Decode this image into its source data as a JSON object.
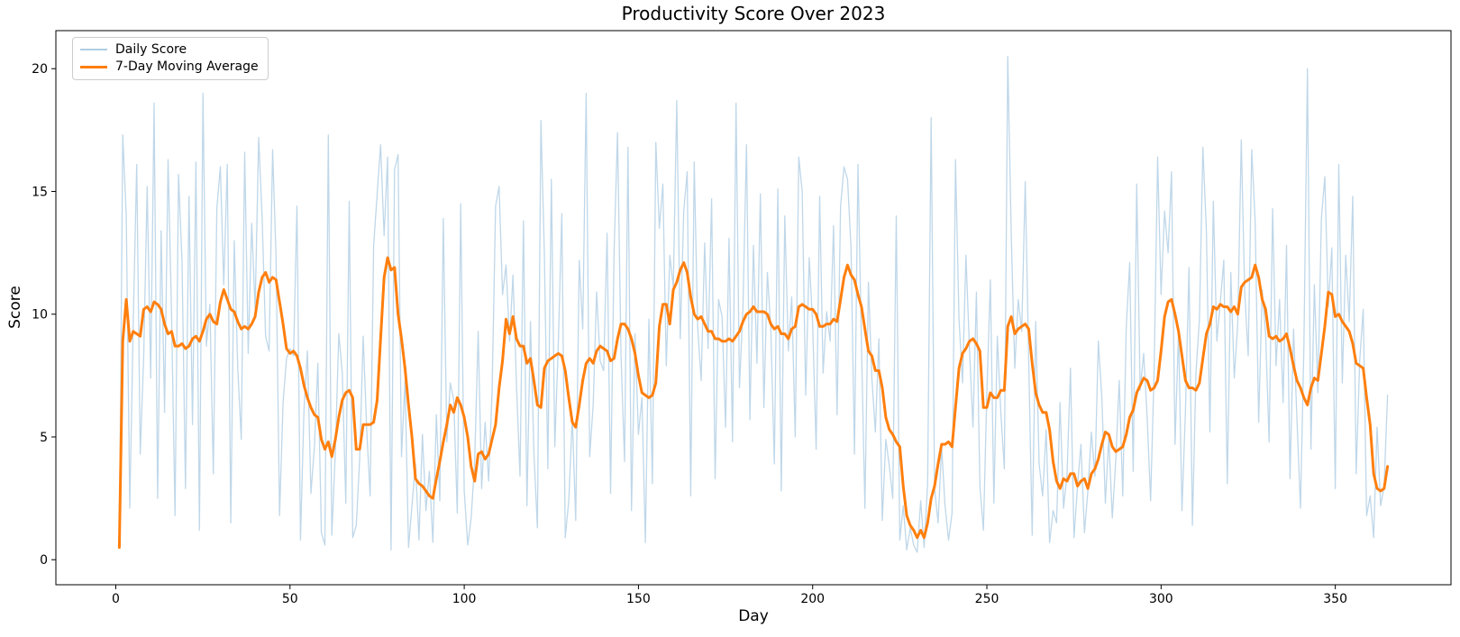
{
  "chart_data": {
    "type": "line",
    "title": "Productivity Score Over 2023",
    "xlabel": "Day",
    "ylabel": "Score",
    "xlim": [
      -17.2,
      383.2
    ],
    "ylim": [
      -1.02,
      21.55
    ],
    "xticks": [
      0,
      50,
      100,
      150,
      200,
      250,
      300,
      350
    ],
    "yticks": [
      0,
      5,
      10,
      15,
      20
    ],
    "grid": false,
    "x_start_day": 1,
    "legend": {
      "position": "upper left",
      "entries": [
        "Daily Score",
        "7-Day Moving Average"
      ]
    },
    "series": [
      {
        "name": "Daily Score",
        "color": "#afcde4",
        "opacity": 0.8,
        "width": 1.3,
        "values": [
          0.5,
          17.3,
          14.0,
          2.1,
          9.6,
          16.1,
          4.3,
          8.2,
          15.2,
          7.4,
          18.6,
          2.5,
          13.4,
          6.0,
          16.3,
          9.9,
          1.8,
          15.7,
          12.1,
          2.9,
          14.8,
          5.5,
          16.2,
          1.2,
          19.0,
          8.7,
          10.4,
          3.5,
          14.3,
          16.0,
          11.2,
          16.1,
          1.5,
          13.0,
          7.8,
          4.9,
          16.6,
          8.4,
          13.7,
          10.2,
          17.2,
          13.9,
          9.1,
          8.5,
          16.7,
          12.3,
          1.8,
          6.4,
          8.2,
          8.6,
          8.3,
          14.4,
          0.8,
          6.1,
          8.5,
          2.7,
          4.6,
          8.0,
          1.1,
          0.6,
          17.3,
          1.0,
          4.4,
          9.2,
          7.6,
          2.3,
          14.6,
          0.9,
          1.4,
          4.1,
          9.1,
          5.3,
          2.6,
          12.8,
          14.9,
          16.9,
          13.2,
          16.4,
          0.4,
          15.9,
          16.5,
          4.2,
          7.3,
          0.5,
          2.2,
          3.9,
          0.8,
          5.1,
          2.0,
          3.6,
          0.7,
          5.9,
          2.4,
          13.9,
          4.8,
          7.2,
          6.5,
          1.9,
          14.5,
          2.8,
          0.6,
          1.7,
          4.0,
          9.3,
          2.9,
          5.6,
          3.2,
          6.8,
          14.4,
          15.2,
          10.8,
          12.0,
          8.9,
          11.6,
          7.1,
          3.4,
          13.8,
          2.2,
          9.7,
          4.4,
          1.3,
          17.9,
          12.5,
          3.7,
          15.5,
          4.6,
          8.8,
          14.1,
          0.9,
          2.4,
          5.8,
          1.6,
          12.2,
          9.4,
          19.0,
          4.2,
          6.3,
          10.9,
          8.1,
          7.7,
          13.3,
          2.7,
          12.6,
          17.4,
          8.3,
          4.0,
          16.8,
          2.0,
          9.2,
          5.1,
          6.6,
          0.7,
          9.8,
          3.1,
          17.0,
          13.5,
          15.3,
          7.9,
          12.4,
          11.1,
          18.7,
          9.0,
          14.2,
          15.8,
          2.6,
          16.2,
          9.5,
          7.3,
          12.9,
          8.6,
          14.7,
          3.3,
          10.6,
          9.9,
          5.4,
          13.1,
          4.8,
          18.6,
          7.0,
          10.3,
          16.9,
          5.7,
          12.8,
          8.0,
          14.9,
          6.2,
          11.7,
          9.4,
          3.9,
          15.1,
          2.8,
          14.0,
          8.5,
          10.7,
          5.0,
          16.4,
          15.0,
          6.7,
          12.3,
          9.6,
          4.5,
          14.8,
          7.6,
          10.1,
          8.9,
          13.6,
          5.9,
          14.4,
          16.0,
          15.5,
          12.7,
          4.3,
          16.1,
          8.7,
          2.1,
          11.3,
          7.4,
          5.2,
          9.0,
          1.6,
          4.9,
          3.8,
          2.5,
          14.0,
          0.8,
          2.2,
          0.4,
          1.3,
          0.6,
          0.3,
          2.4,
          0.5,
          3.1,
          18.0,
          2.9,
          1.5,
          4.6,
          2.2,
          0.8,
          1.9,
          16.3,
          9.8,
          7.2,
          12.4,
          8.6,
          5.4,
          10.9,
          3.0,
          1.2,
          6.8,
          11.4,
          2.3,
          9.1,
          6.0,
          3.7,
          20.5,
          13.2,
          7.8,
          10.6,
          9.3,
          15.4,
          8.2,
          1.0,
          9.7,
          3.9,
          2.6,
          5.3,
          0.7,
          2.0,
          1.5,
          6.4,
          2.1,
          3.5,
          7.8,
          0.9,
          3.0,
          4.7,
          1.1,
          2.8,
          5.2,
          3.4,
          8.9,
          6.6,
          2.3,
          5.0,
          1.7,
          4.1,
          7.3,
          2.6,
          9.5,
          12.1,
          3.6,
          15.3,
          6.9,
          8.4,
          5.8,
          2.4,
          7.7,
          16.4,
          10.8,
          14.2,
          12.5,
          15.8,
          4.7,
          9.3,
          2.0,
          6.1,
          11.9,
          1.4,
          7.6,
          9.8,
          16.8,
          13.4,
          5.2,
          14.6,
          8.9,
          10.5,
          12.2,
          3.1,
          11.7,
          7.4,
          9.6,
          17.1,
          10.9,
          8.3,
          16.7,
          13.8,
          5.6,
          11.0,
          9.2,
          4.8,
          14.3,
          7.9,
          10.6,
          6.4,
          12.8,
          3.3,
          9.4,
          5.7,
          2.1,
          8.7,
          20.0,
          4.5,
          11.2,
          6.8,
          13.9,
          15.6,
          10.3,
          12.7,
          2.9,
          16.1,
          7.2,
          12.4,
          9.7,
          14.8,
          3.5,
          8.1,
          10.2,
          1.8,
          2.6,
          0.9,
          5.4,
          2.2,
          3.0,
          6.7
        ]
      },
      {
        "name": "7-Day Moving Average",
        "color": "#ff7f0e",
        "opacity": 1,
        "width": 3,
        "values": [
          0.5,
          8.9,
          10.6,
          8.9,
          9.3,
          9.2,
          9.1,
          10.2,
          10.3,
          10.1,
          10.5,
          10.4,
          10.2,
          9.6,
          9.2,
          9.3,
          8.7,
          8.7,
          8.8,
          8.6,
          8.7,
          9.0,
          9.1,
          8.9,
          9.3,
          9.8,
          10.0,
          9.7,
          9.6,
          10.5,
          11.0,
          10.6,
          10.2,
          10.1,
          9.7,
          9.4,
          9.5,
          9.4,
          9.6,
          9.9,
          10.9,
          11.5,
          11.7,
          11.3,
          11.5,
          11.4,
          10.5,
          9.6,
          8.6,
          8.4,
          8.5,
          8.3,
          7.8,
          7.1,
          6.6,
          6.2,
          5.9,
          5.8,
          4.9,
          4.5,
          4.8,
          4.2,
          4.9,
          5.8,
          6.5,
          6.8,
          6.9,
          6.6,
          4.5,
          4.5,
          5.5,
          5.5,
          5.5,
          5.6,
          6.5,
          9.0,
          11.5,
          12.3,
          11.8,
          11.9,
          10.0,
          9.0,
          7.8,
          6.3,
          5.0,
          3.3,
          3.1,
          3.0,
          2.8,
          2.6,
          2.5,
          3.3,
          4.0,
          4.8,
          5.5,
          6.3,
          6.0,
          6.6,
          6.3,
          5.8,
          5.0,
          3.8,
          3.2,
          4.3,
          4.4,
          4.1,
          4.3,
          4.9,
          5.5,
          7.0,
          8.1,
          9.8,
          9.2,
          9.9,
          9.0,
          8.7,
          8.7,
          8.0,
          8.2,
          7.3,
          6.3,
          6.2,
          7.8,
          8.1,
          8.2,
          8.3,
          8.4,
          8.3,
          7.7,
          6.6,
          5.6,
          5.4,
          6.3,
          7.3,
          8.0,
          8.2,
          8.0,
          8.5,
          8.7,
          8.6,
          8.5,
          8.1,
          8.2,
          9.0,
          9.6,
          9.6,
          9.4,
          9.0,
          8.4,
          7.5,
          6.8,
          6.7,
          6.6,
          6.7,
          7.2,
          9.5,
          10.4,
          10.4,
          9.6,
          11.0,
          11.3,
          11.8,
          12.1,
          11.7,
          10.7,
          10.0,
          9.8,
          9.9,
          9.6,
          9.3,
          9.3,
          9.0,
          9.0,
          8.9,
          8.9,
          9.0,
          8.9,
          9.1,
          9.3,
          9.7,
          10.0,
          10.1,
          10.3,
          10.1,
          10.1,
          10.1,
          10.0,
          9.6,
          9.4,
          9.5,
          9.2,
          9.2,
          9.0,
          9.4,
          9.5,
          10.3,
          10.4,
          10.3,
          10.2,
          10.2,
          10.0,
          9.5,
          9.5,
          9.6,
          9.6,
          9.8,
          9.7,
          10.6,
          11.5,
          12.0,
          11.6,
          11.4,
          10.8,
          10.3,
          9.4,
          8.5,
          8.3,
          7.7,
          7.7,
          7.0,
          5.8,
          5.3,
          5.1,
          4.8,
          4.6,
          3.0,
          1.8,
          1.4,
          1.2,
          0.9,
          1.2,
          0.9,
          1.5,
          2.5,
          3.0,
          3.9,
          4.7,
          4.7,
          4.8,
          4.6,
          6.2,
          7.8,
          8.4,
          8.6,
          8.9,
          9.0,
          8.8,
          8.5,
          6.2,
          6.2,
          6.8,
          6.6,
          6.6,
          6.9,
          6.9,
          9.5,
          9.9,
          9.2,
          9.4,
          9.5,
          9.6,
          9.4,
          8.0,
          6.8,
          6.3,
          6.0,
          6.0,
          5.3,
          4.0,
          3.2,
          2.9,
          3.3,
          3.2,
          3.5,
          3.5,
          3.0,
          3.2,
          3.3,
          2.9,
          3.5,
          3.7,
          4.1,
          4.7,
          5.2,
          5.1,
          4.6,
          4.4,
          4.5,
          4.6,
          5.1,
          5.8,
          6.1,
          6.8,
          7.1,
          7.4,
          7.3,
          6.9,
          7.0,
          7.3,
          8.5,
          9.9,
          10.5,
          10.6,
          10.0,
          9.3,
          8.3,
          7.3,
          7.0,
          7.0,
          6.9,
          7.2,
          8.2,
          9.2,
          9.6,
          10.3,
          10.2,
          10.4,
          10.3,
          10.3,
          10.1,
          10.3,
          10.0,
          11.1,
          11.3,
          11.4,
          11.5,
          12.0,
          11.5,
          10.6,
          10.2,
          9.1,
          9.0,
          9.1,
          8.9,
          9.0,
          9.2,
          8.6,
          7.9,
          7.3,
          7.0,
          6.6,
          6.3,
          7.0,
          7.4,
          7.3,
          8.4,
          9.5,
          10.9,
          10.8,
          9.9,
          10.0,
          9.7,
          9.5,
          9.3,
          8.8,
          8.0,
          7.9,
          7.8,
          6.6,
          5.5,
          3.5,
          2.9,
          2.8,
          2.9,
          3.8
        ]
      }
    ]
  }
}
